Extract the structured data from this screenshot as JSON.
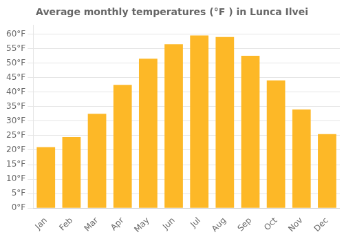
{
  "chart_data": {
    "type": "bar",
    "title": "Average monthly temperatures (°F ) in Lunca Ilvei",
    "categories": [
      "Jan",
      "Feb",
      "Mar",
      "Apr",
      "May",
      "Jun",
      "Jul",
      "Aug",
      "Sep",
      "Oct",
      "Nov",
      "Dec"
    ],
    "values": [
      21,
      24.5,
      32.5,
      42.5,
      51.5,
      56.5,
      59.5,
      59,
      52.5,
      44,
      34,
      25.5
    ],
    "color": "#FDB827",
    "ylim": [
      0,
      63
    ],
    "yticks": [
      {
        "value": 0,
        "label": "0°F"
      },
      {
        "value": 5,
        "label": "5°F"
      },
      {
        "value": 10,
        "label": "10°F"
      },
      {
        "value": 15,
        "label": "15°F"
      },
      {
        "value": 20,
        "label": "20°F"
      },
      {
        "value": 25,
        "label": "25°F"
      },
      {
        "value": 30,
        "label": "30°F"
      },
      {
        "value": 35,
        "label": "35°F"
      },
      {
        "value": 40,
        "label": "40°F"
      },
      {
        "value": 45,
        "label": "45°F"
      },
      {
        "value": 50,
        "label": "50°F"
      },
      {
        "value": 55,
        "label": "55°F"
      },
      {
        "value": 60,
        "label": "60°F"
      }
    ],
    "grid": true
  }
}
